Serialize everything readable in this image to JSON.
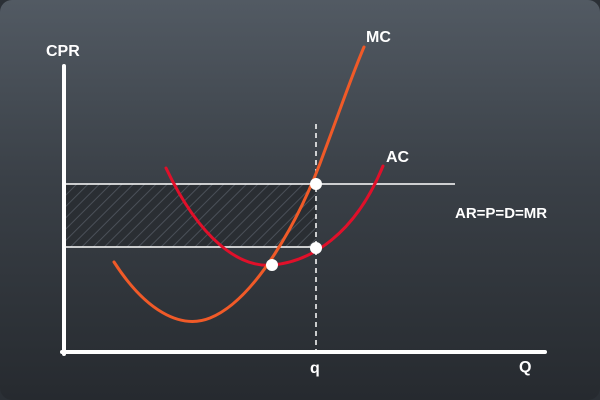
{
  "diagram": {
    "y_axis_label": "CPR",
    "x_axis_label": "Q",
    "quantity_label": "q",
    "mc_label": "MC",
    "ac_label": "AC",
    "demand_label": "AR=P=D=MR"
  },
  "colors": {
    "mc": "#f05a28",
    "ac": "#e0102a",
    "axes": "#ffffff",
    "shading": "#1f2327"
  }
}
